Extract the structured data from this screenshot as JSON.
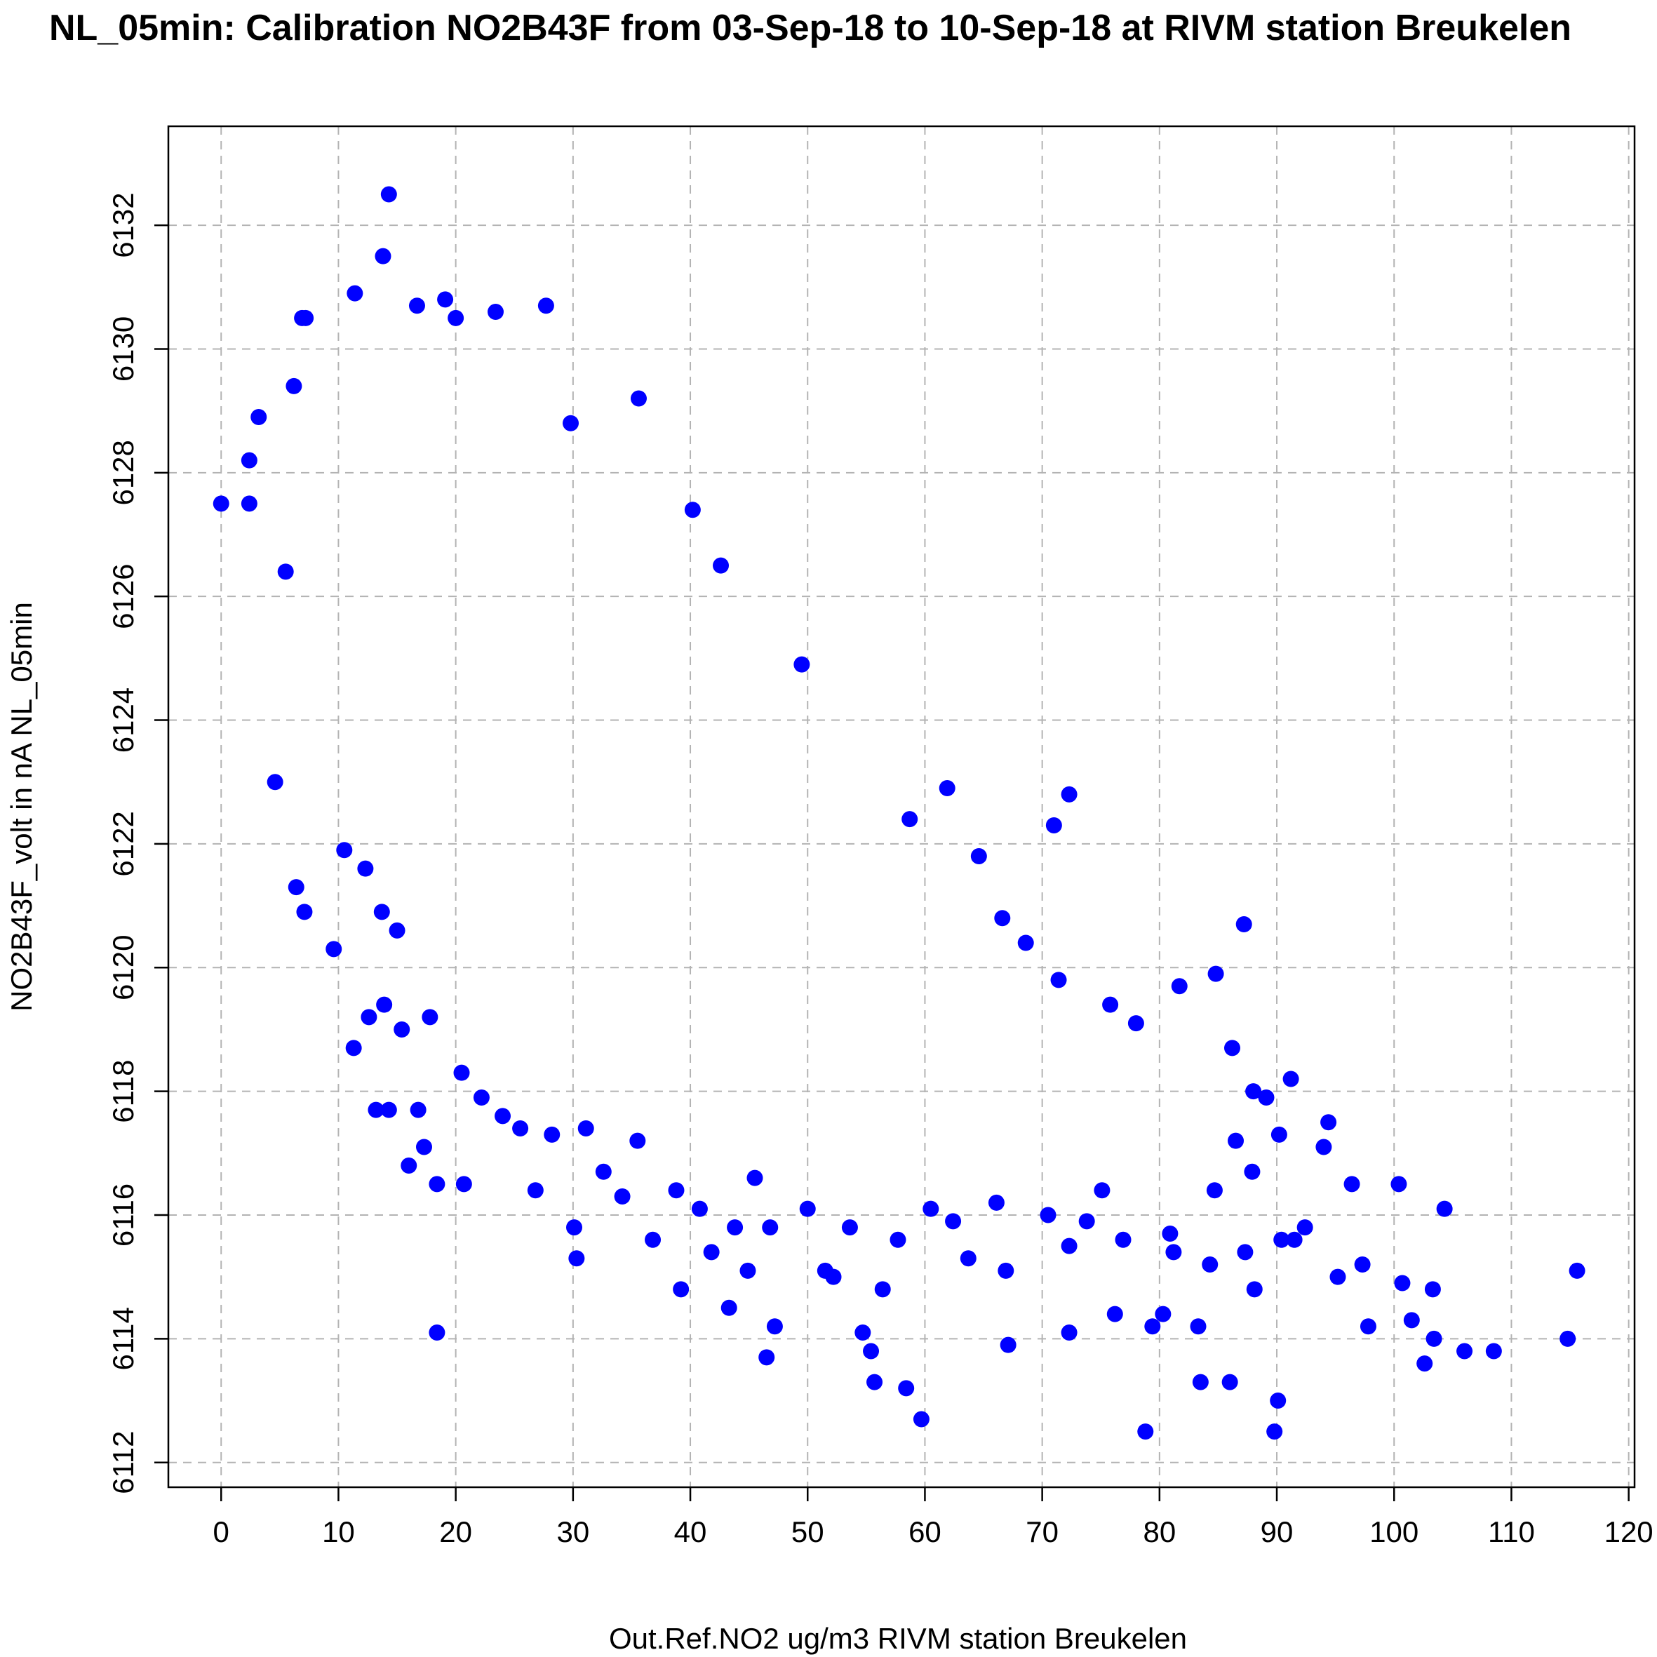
{
  "chart_data": {
    "type": "scatter",
    "title": "NL_05min: Calibration NO2B43F from 03-Sep-18 to 10-Sep-18 at RIVM station Breukelen",
    "xlabel": "Out.Ref.NO2 ug/m3 RIVM station Breukelen",
    "ylabel": "NO2B43F_volt in nA NL_05min",
    "xlim": [
      -4.5,
      120.5
    ],
    "ylim": [
      6111.6,
      6133.6
    ],
    "x_ticks": [
      0,
      10,
      20,
      30,
      40,
      50,
      60,
      70,
      80,
      90,
      100,
      110,
      120
    ],
    "y_ticks": [
      6112,
      6114,
      6116,
      6118,
      6120,
      6122,
      6124,
      6126,
      6128,
      6130,
      6132
    ],
    "grid": true,
    "legend": "none",
    "point_color": "#0000ff",
    "series": [
      {
        "points": [
          [
            0.0,
            6127.5
          ],
          [
            2.4,
            6128.2
          ],
          [
            2.4,
            6127.5
          ],
          [
            3.2,
            6128.9
          ],
          [
            4.6,
            6123.0
          ],
          [
            5.5,
            6126.4
          ],
          [
            6.2,
            6129.4
          ],
          [
            6.9,
            6130.5
          ],
          [
            7.2,
            6130.5
          ],
          [
            6.4,
            6121.3
          ],
          [
            7.1,
            6120.9
          ],
          [
            9.6,
            6120.3
          ],
          [
            11.3,
            6118.7
          ],
          [
            11.4,
            6130.9
          ],
          [
            13.8,
            6131.5
          ],
          [
            14.3,
            6132.5
          ],
          [
            16.7,
            6130.7
          ],
          [
            19.1,
            6130.8
          ],
          [
            20.0,
            6130.5
          ],
          [
            23.4,
            6130.6
          ],
          [
            27.7,
            6130.7
          ],
          [
            29.8,
            6128.8
          ],
          [
            35.6,
            6129.2
          ],
          [
            40.2,
            6127.4
          ],
          [
            42.6,
            6126.5
          ],
          [
            49.5,
            6124.9
          ],
          [
            13.2,
            6117.7
          ],
          [
            14.3,
            6117.7
          ],
          [
            16.8,
            6117.7
          ],
          [
            17.3,
            6117.1
          ],
          [
            16.0,
            6116.8
          ],
          [
            18.4,
            6116.5
          ],
          [
            20.7,
            6116.5
          ],
          [
            18.4,
            6114.1
          ],
          [
            30.1,
            6115.8
          ],
          [
            30.3,
            6115.3
          ],
          [
            32.6,
            6116.7
          ],
          [
            34.2,
            6116.3
          ],
          [
            39.2,
            6114.8
          ],
          [
            41.8,
            6115.4
          ],
          [
            43.3,
            6114.5
          ],
          [
            46.5,
            6113.7
          ],
          [
            47.2,
            6114.2
          ],
          [
            44.9,
            6115.1
          ],
          [
            52.2,
            6115.0
          ],
          [
            54.7,
            6114.1
          ],
          [
            55.4,
            6113.8
          ],
          [
            55.7,
            6113.3
          ],
          [
            56.4,
            6114.8
          ],
          [
            58.4,
            6113.2
          ],
          [
            59.7,
            6112.7
          ],
          [
            67.1,
            6113.9
          ],
          [
            72.3,
            6114.1
          ],
          [
            76.2,
            6114.4
          ],
          [
            78.8,
            6112.5
          ],
          [
            79.4,
            6114.2
          ],
          [
            80.3,
            6114.4
          ],
          [
            83.5,
            6113.3
          ],
          [
            83.3,
            6114.2
          ],
          [
            86.0,
            6113.3
          ],
          [
            89.8,
            6112.5
          ],
          [
            90.1,
            6113.0
          ],
          [
            88.1,
            6114.8
          ],
          [
            90.4,
            6115.6
          ],
          [
            91.5,
            6115.6
          ],
          [
            92.4,
            6115.8
          ],
          [
            95.2,
            6115.0
          ],
          [
            97.3,
            6115.2
          ],
          [
            97.8,
            6114.2
          ],
          [
            100.7,
            6114.9
          ],
          [
            101.5,
            6114.3
          ],
          [
            102.6,
            6113.6
          ],
          [
            103.4,
            6114.0
          ],
          [
            103.3,
            6114.8
          ],
          [
            106.0,
            6113.8
          ],
          [
            108.5,
            6113.8
          ],
          [
            114.8,
            6114.0
          ],
          [
            115.6,
            6115.1
          ],
          [
            104.3,
            6116.1
          ],
          [
            100.4,
            6116.5
          ],
          [
            96.4,
            6116.5
          ],
          [
            94.4,
            6117.5
          ],
          [
            94.0,
            6117.1
          ],
          [
            91.2,
            6118.2
          ],
          [
            87.2,
            6120.7
          ],
          [
            84.8,
            6119.9
          ],
          [
            81.7,
            6119.7
          ],
          [
            72.3,
            6122.8
          ],
          [
            71.0,
            6122.3
          ],
          [
            64.6,
            6121.8
          ],
          [
            61.9,
            6122.9
          ],
          [
            58.7,
            6122.4
          ],
          [
            66.6,
            6120.8
          ],
          [
            68.6,
            6120.4
          ],
          [
            71.4,
            6119.8
          ],
          [
            75.8,
            6119.4
          ],
          [
            78.0,
            6119.1
          ],
          [
            86.2,
            6118.7
          ],
          [
            88.0,
            6118.0
          ],
          [
            89.1,
            6117.9
          ],
          [
            90.2,
            6117.3
          ],
          [
            87.9,
            6116.7
          ],
          [
            86.5,
            6117.2
          ],
          [
            84.7,
            6116.4
          ],
          [
            84.3,
            6115.2
          ],
          [
            87.3,
            6115.4
          ],
          [
            81.2,
            6115.4
          ],
          [
            80.9,
            6115.7
          ],
          [
            76.9,
            6115.6
          ],
          [
            75.1,
            6116.4
          ],
          [
            73.8,
            6115.9
          ],
          [
            72.3,
            6115.5
          ],
          [
            70.5,
            6116.0
          ],
          [
            66.1,
            6116.2
          ],
          [
            66.9,
            6115.1
          ],
          [
            63.7,
            6115.3
          ],
          [
            62.4,
            6115.9
          ],
          [
            60.5,
            6116.1
          ],
          [
            57.7,
            6115.6
          ],
          [
            53.6,
            6115.8
          ],
          [
            51.5,
            6115.1
          ],
          [
            50.0,
            6116.1
          ],
          [
            46.8,
            6115.8
          ],
          [
            45.5,
            6116.6
          ],
          [
            43.8,
            6115.8
          ],
          [
            40.8,
            6116.1
          ],
          [
            38.8,
            6116.4
          ],
          [
            36.8,
            6115.6
          ],
          [
            35.5,
            6117.2
          ],
          [
            31.1,
            6117.4
          ],
          [
            28.2,
            6117.3
          ],
          [
            26.8,
            6116.4
          ],
          [
            25.5,
            6117.4
          ],
          [
            24.0,
            6117.6
          ],
          [
            22.2,
            6117.9
          ],
          [
            20.5,
            6118.3
          ],
          [
            17.8,
            6119.2
          ],
          [
            15.4,
            6119.0
          ],
          [
            13.9,
            6119.4
          ],
          [
            12.6,
            6119.2
          ],
          [
            15.0,
            6120.6
          ],
          [
            13.7,
            6120.9
          ],
          [
            12.3,
            6121.6
          ],
          [
            10.5,
            6121.9
          ]
        ]
      }
    ]
  }
}
